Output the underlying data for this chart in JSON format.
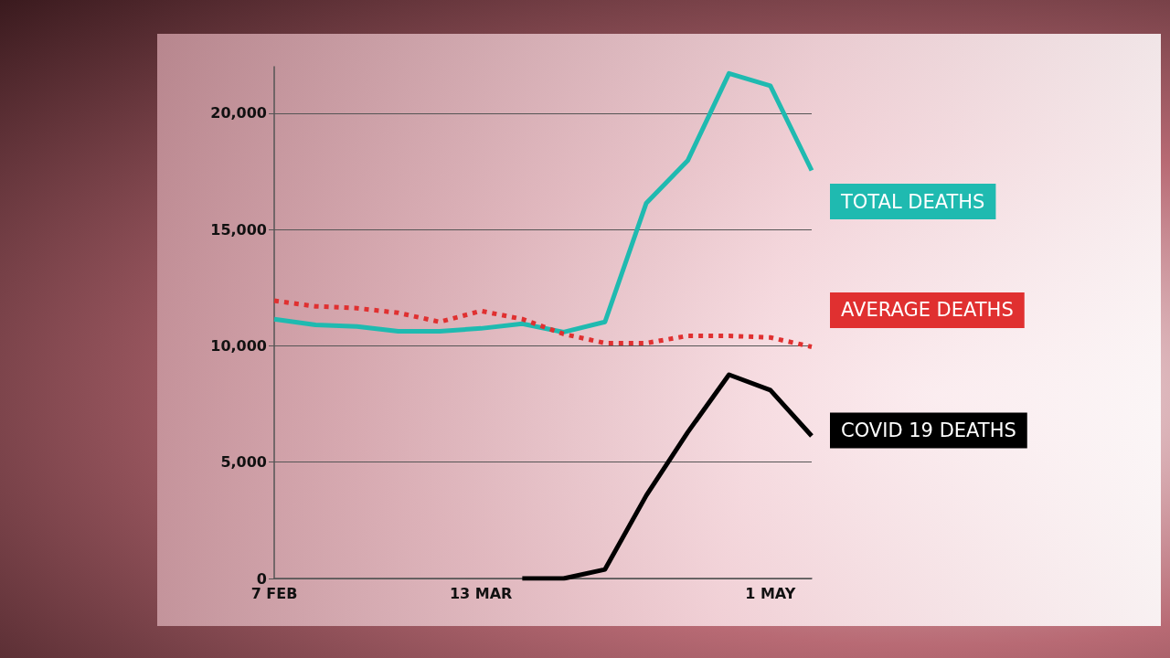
{
  "chart_data": {
    "type": "line",
    "categories": [
      "7 FEB",
      null,
      null,
      null,
      null,
      "13 MAR",
      null,
      null,
      null,
      null,
      null,
      null,
      "1 MAY",
      null
    ],
    "series": [
      {
        "name": "TOTAL DEATHS",
        "color": "#1fbab0",
        "values": [
          11150,
          10900,
          10830,
          10630,
          10630,
          10750,
          10950,
          10590,
          11030,
          16140,
          17960,
          21710,
          21180,
          17540
        ]
      },
      {
        "name": "AVERAGE DEATHS",
        "color": "#e03030",
        "line_style": "dashed",
        "values": [
          11940,
          11700,
          11620,
          11420,
          11030,
          11500,
          11150,
          10510,
          10120,
          10120,
          10430,
          10430,
          10360,
          9960
        ]
      },
      {
        "name": "COVID 19 DEATHS",
        "color": "#000000",
        "values": [
          null,
          null,
          null,
          null,
          null,
          null,
          0,
          0,
          390,
          3570,
          6280,
          8760,
          8100,
          6130
        ]
      }
    ],
    "ylim": [
      0,
      22000
    ],
    "yticks": [
      0,
      {
        "value": 5000,
        "label": "5,000"
      },
      {
        "value": 10000,
        "label": "10,000"
      },
      {
        "value": 15000,
        "label": "15,000"
      },
      {
        "value": 20000,
        "label": "20,000"
      }
    ],
    "grid": "y",
    "legend": false,
    "marker": "none",
    "line_style": "solid"
  }
}
